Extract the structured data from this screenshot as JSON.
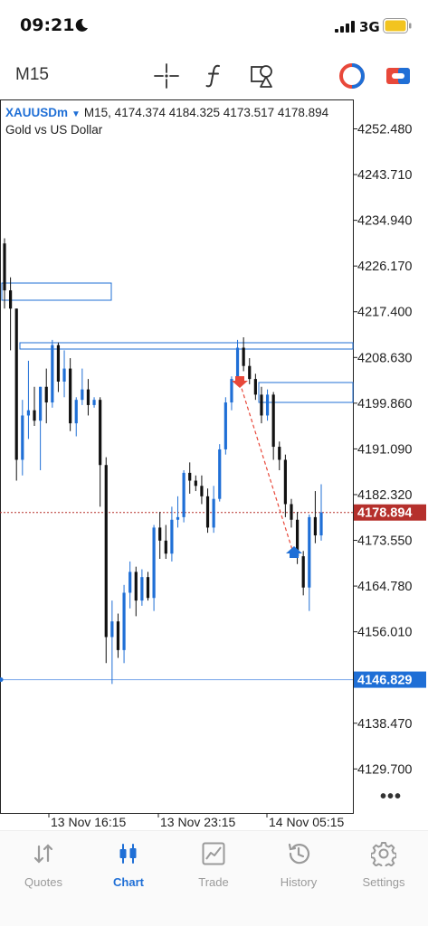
{
  "status_bar": {
    "time": "09:21",
    "network": "3G"
  },
  "toolbar": {
    "timeframe": "M15"
  },
  "chart": {
    "symbol": "XAUUSDm",
    "ohlc_line": "M15, 4174.374 4184.325 4173.517 4178.894",
    "description": "Gold vs US Dollar",
    "price_axis": [
      "4252.480",
      "4243.710",
      "4234.940",
      "4226.170",
      "4217.400",
      "4208.630",
      "4199.860",
      "4191.090",
      "4182.320",
      "4173.550",
      "4164.780",
      "4156.010",
      "4138.470",
      "4129.700"
    ],
    "current_price": "4178.894",
    "line_price": "4146.829",
    "time_axis": [
      "13 Nov 16:15",
      "13 Nov 23:15",
      "14 Nov 05:15"
    ],
    "colors": {
      "bull": "#1f6fd6",
      "bear": "#111111",
      "line": "#1f6fd6",
      "current": "#b5302c"
    }
  },
  "chart_data": {
    "type": "candlestick",
    "symbol": "XAUUSDm",
    "timeframe": "M15",
    "y_range": [
      4124,
      4257
    ],
    "x_labels": [
      "13 Nov 16:15",
      "13 Nov 23:15",
      "14 Nov 05:15"
    ],
    "candles": [
      [
        4230.5,
        4231.5,
        4218.0,
        4221.5
      ],
      [
        4221.5,
        4224.0,
        4210.0,
        4218.0
      ],
      [
        4218.0,
        4218.0,
        4185.0,
        4189.0
      ],
      [
        4189.0,
        4200.5,
        4186.0,
        4197.5
      ],
      [
        4197.5,
        4208.0,
        4193.0,
        4198.5
      ],
      [
        4198.5,
        4203.0,
        4195.5,
        4196.5
      ],
      [
        4196.5,
        4203.0,
        4187.0,
        4203.0
      ],
      [
        4203.0,
        4206.5,
        4196.0,
        4200.0
      ],
      [
        4200.0,
        4212.0,
        4199.0,
        4211.0
      ],
      [
        4211.0,
        4211.5,
        4202.0,
        4204.0
      ],
      [
        4204.0,
        4210.0,
        4201.0,
        4206.5
      ],
      [
        4206.5,
        4208.5,
        4194.5,
        4196.0
      ],
      [
        4196.0,
        4201.0,
        4193.5,
        4200.5
      ],
      [
        4200.5,
        4206.5,
        4199.5,
        4202.5
      ],
      [
        4202.5,
        4204.5,
        4197.5,
        4199.5
      ],
      [
        4199.5,
        4201.0,
        4199.0,
        4200.5
      ],
      [
        4200.5,
        4201.0,
        4180.0,
        4188.0
      ],
      [
        4188.0,
        4189.5,
        4150.0,
        4155.0
      ],
      [
        4155.0,
        4162.0,
        4146.0,
        4158.0
      ],
      [
        4158.0,
        4159.5,
        4151.0,
        4152.5
      ],
      [
        4152.5,
        4165.0,
        4150.0,
        4163.5
      ],
      [
        4163.5,
        4169.5,
        4160.5,
        4167.5
      ],
      [
        4167.5,
        4168.5,
        4159.0,
        4162.0
      ],
      [
        4162.0,
        4168.0,
        4161.0,
        4166.5
      ],
      [
        4166.5,
        4167.5,
        4162.0,
        4162.5
      ],
      [
        4162.5,
        4176.5,
        4160.0,
        4176.0
      ],
      [
        4176.0,
        4179.0,
        4170.0,
        4173.5
      ],
      [
        4173.5,
        4176.5,
        4170.0,
        4171.0
      ],
      [
        4171.0,
        4180.0,
        4169.5,
        4177.5
      ],
      [
        4177.5,
        4182.0,
        4176.0,
        4178.0
      ],
      [
        4178.0,
        4187.0,
        4177.0,
        4186.5
      ],
      [
        4186.5,
        4188.5,
        4182.5,
        4185.0
      ],
      [
        4185.0,
        4186.0,
        4183.0,
        4184.0
      ],
      [
        4184.0,
        4186.0,
        4180.5,
        4182.0
      ],
      [
        4182.0,
        4183.5,
        4175.0,
        4176.0
      ],
      [
        4176.0,
        4184.0,
        4175.0,
        4181.5
      ],
      [
        4181.5,
        4192.0,
        4181.0,
        4191.0
      ],
      [
        4191.0,
        4201.0,
        4190.0,
        4200.0
      ],
      [
        4200.0,
        4205.0,
        4198.5,
        4204.5
      ],
      [
        4204.5,
        4212.0,
        4203.5,
        4210.5
      ],
      [
        4210.5,
        4212.5,
        4206.0,
        4207.0
      ],
      [
        4207.0,
        4208.5,
        4203.5,
        4204.5
      ],
      [
        4204.5,
        4205.5,
        4200.5,
        4201.5
      ],
      [
        4201.5,
        4203.0,
        4196.0,
        4197.5
      ],
      [
        4197.5,
        4202.5,
        4196.5,
        4201.5
      ],
      [
        4201.5,
        4202.0,
        4189.0,
        4191.5
      ],
      [
        4191.5,
        4192.5,
        4187.0,
        4189.0
      ],
      [
        4189.0,
        4190.0,
        4178.0,
        4180.5
      ],
      [
        4180.5,
        4181.5,
        4176.0,
        4177.5
      ],
      [
        4177.5,
        4179.0,
        4169.0,
        4170.5
      ],
      [
        4170.5,
        4171.5,
        4163.0,
        4164.5
      ],
      [
        4164.5,
        4178.5,
        4160.0,
        4178.0
      ],
      [
        4178.0,
        4183.0,
        4173.0,
        4174.5
      ],
      [
        4174.5,
        4184.3,
        4173.5,
        4178.9
      ]
    ],
    "horizontal_lines": [
      4146.829
    ],
    "current_price": 4178.894
  }
}
